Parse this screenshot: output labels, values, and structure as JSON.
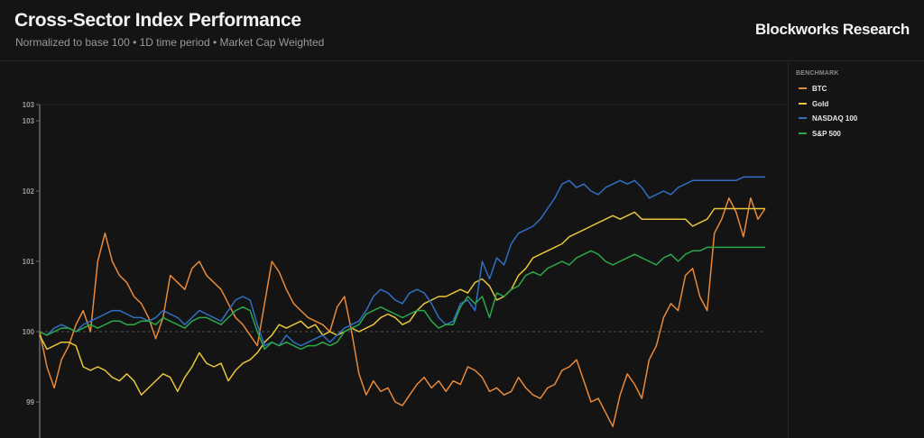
{
  "header": {
    "title": "Cross-Sector Index Performance",
    "subtitle": "Normalized to base 100 • 1D time period • Market Cap Weighted",
    "brand": "Blockworks Research"
  },
  "legend": {
    "title": "BENCHMARK",
    "items": [
      {
        "label": "BTC",
        "color": "#e8893a"
      },
      {
        "label": "Gold",
        "color": "#e8c53a"
      },
      {
        "label": "NASDAQ 100",
        "color": "#2f6fc4"
      },
      {
        "label": "S&P 500",
        "color": "#2aa84a"
      }
    ]
  },
  "chart_data": {
    "type": "line",
    "title": "Cross-Sector Index Performance",
    "subtitle": "Normalized to base 100 • 1D time period • Market Cap Weighted",
    "xlabel": "",
    "ylabel": "",
    "yticks": [
      {
        "label": "103",
        "value": 103.23
      },
      {
        "label": "103",
        "value": 103.0
      },
      {
        "label": "102",
        "value": 102.0
      },
      {
        "label": "101",
        "value": 101.0
      },
      {
        "label": "100",
        "value": 100.0
      },
      {
        "label": "99",
        "value": 99.0
      }
    ],
    "ylim": [
      98.5,
      103.23
    ],
    "baseline": 100,
    "grid": false,
    "legend_position": "right",
    "legend_title": "BENCHMARK",
    "x_points": 100,
    "series": [
      {
        "name": "BTC",
        "color": "#e8893a",
        "values": [
          100.0,
          99.5,
          99.2,
          99.6,
          99.8,
          100.1,
          100.3,
          100.0,
          101.0,
          101.4,
          101.0,
          100.8,
          100.7,
          100.5,
          100.4,
          100.2,
          99.9,
          100.2,
          100.8,
          100.7,
          100.6,
          100.9,
          101.0,
          100.8,
          100.7,
          100.6,
          100.4,
          100.2,
          100.1,
          99.95,
          99.8,
          100.4,
          101.0,
          100.85,
          100.6,
          100.4,
          100.3,
          100.2,
          100.15,
          100.1,
          100.0,
          100.35,
          100.5,
          100.0,
          99.4,
          99.1,
          99.3,
          99.15,
          99.2,
          99.0,
          98.95,
          99.1,
          99.25,
          99.35,
          99.2,
          99.3,
          99.15,
          99.3,
          99.25,
          99.5,
          99.45,
          99.35,
          99.15,
          99.2,
          99.1,
          99.15,
          99.35,
          99.2,
          99.1,
          99.05,
          99.2,
          99.25,
          99.45,
          99.5,
          99.6,
          99.3,
          99.0,
          99.05,
          98.85,
          98.65,
          99.1,
          99.4,
          99.25,
          99.05,
          99.6,
          99.8,
          100.2,
          100.4,
          100.3,
          100.8,
          100.9,
          100.5,
          100.3,
          101.4,
          101.6,
          101.9,
          101.7,
          101.35,
          101.9,
          101.6,
          101.75
        ],
        "values_note": "approximate readings"
      },
      {
        "name": "Gold",
        "color": "#e8c53a",
        "values": [
          99.95,
          99.75,
          99.8,
          99.85,
          99.85,
          99.8,
          99.5,
          99.45,
          99.5,
          99.45,
          99.35,
          99.3,
          99.4,
          99.3,
          99.1,
          99.2,
          99.3,
          99.4,
          99.35,
          99.15,
          99.35,
          99.5,
          99.7,
          99.55,
          99.5,
          99.55,
          99.3,
          99.45,
          99.55,
          99.6,
          99.7,
          99.85,
          99.95,
          100.1,
          100.05,
          100.1,
          100.15,
          100.05,
          100.1,
          99.95,
          100.0,
          99.95,
          100.0,
          100.05,
          100.0,
          100.05,
          100.1,
          100.2,
          100.25,
          100.2,
          100.1,
          100.15,
          100.3,
          100.4,
          100.45,
          100.5,
          100.5,
          100.55,
          100.6,
          100.55,
          100.7,
          100.75,
          100.65,
          100.45,
          100.5,
          100.6,
          100.8,
          100.9,
          101.05,
          101.1,
          101.15,
          101.2,
          101.25,
          101.35,
          101.4,
          101.45,
          101.5,
          101.55,
          101.6,
          101.65,
          101.6,
          101.65,
          101.7,
          101.6,
          101.6,
          101.6,
          101.6,
          101.6,
          101.6,
          101.6,
          101.5,
          101.55,
          101.6,
          101.75,
          101.75,
          101.75,
          101.75,
          101.75,
          101.75,
          101.75,
          101.75
        ],
        "values_note": "approximate readings"
      },
      {
        "name": "NASDAQ 100",
        "color": "#2f6fc4",
        "values": [
          100.0,
          99.95,
          100.05,
          100.1,
          100.05,
          100.0,
          100.1,
          100.15,
          100.2,
          100.25,
          100.3,
          100.3,
          100.25,
          100.2,
          100.2,
          100.15,
          100.2,
          100.3,
          100.25,
          100.2,
          100.1,
          100.2,
          100.3,
          100.25,
          100.2,
          100.15,
          100.3,
          100.45,
          100.5,
          100.45,
          100.1,
          99.8,
          99.85,
          99.8,
          99.95,
          99.85,
          99.8,
          99.85,
          99.9,
          99.95,
          99.85,
          99.95,
          100.05,
          100.1,
          100.15,
          100.3,
          100.5,
          100.6,
          100.55,
          100.45,
          100.4,
          100.55,
          100.6,
          100.55,
          100.4,
          100.2,
          100.1,
          100.15,
          100.4,
          100.45,
          100.3,
          101.0,
          100.75,
          101.05,
          100.95,
          101.25,
          101.4,
          101.45,
          101.5,
          101.6,
          101.75,
          101.9,
          102.1,
          102.15,
          102.05,
          102.1,
          102.0,
          101.95,
          102.05,
          102.1,
          102.15,
          102.1,
          102.15,
          102.05,
          101.9,
          101.95,
          102.0,
          101.95,
          102.05,
          102.1,
          102.15,
          102.15,
          102.15,
          102.15,
          102.15,
          102.15,
          102.15,
          102.2,
          102.2,
          102.2,
          102.2
        ],
        "values_note": "approximate readings"
      },
      {
        "name": "S&P 500",
        "color": "#2aa84a",
        "values": [
          100.0,
          99.95,
          100.0,
          100.05,
          100.05,
          100.0,
          100.05,
          100.1,
          100.05,
          100.1,
          100.15,
          100.15,
          100.1,
          100.1,
          100.15,
          100.15,
          100.1,
          100.2,
          100.15,
          100.1,
          100.05,
          100.15,
          100.2,
          100.2,
          100.15,
          100.1,
          100.2,
          100.3,
          100.35,
          100.3,
          100.0,
          99.75,
          99.85,
          99.8,
          99.85,
          99.8,
          99.75,
          99.8,
          99.8,
          99.85,
          99.8,
          99.85,
          100.0,
          100.05,
          100.1,
          100.25,
          100.3,
          100.35,
          100.3,
          100.25,
          100.2,
          100.25,
          100.3,
          100.3,
          100.15,
          100.05,
          100.1,
          100.1,
          100.35,
          100.5,
          100.4,
          100.5,
          100.2,
          100.55,
          100.5,
          100.6,
          100.65,
          100.8,
          100.85,
          100.8,
          100.9,
          100.95,
          101.0,
          100.95,
          101.05,
          101.1,
          101.15,
          101.1,
          101.0,
          100.95,
          101.0,
          101.05,
          101.1,
          101.05,
          101.0,
          100.95,
          101.05,
          101.1,
          101.0,
          101.1,
          101.15,
          101.15,
          101.2,
          101.2,
          101.2,
          101.2,
          101.2,
          101.2,
          101.2,
          101.2,
          101.2
        ],
        "values_note": "approximate readings"
      }
    ]
  }
}
